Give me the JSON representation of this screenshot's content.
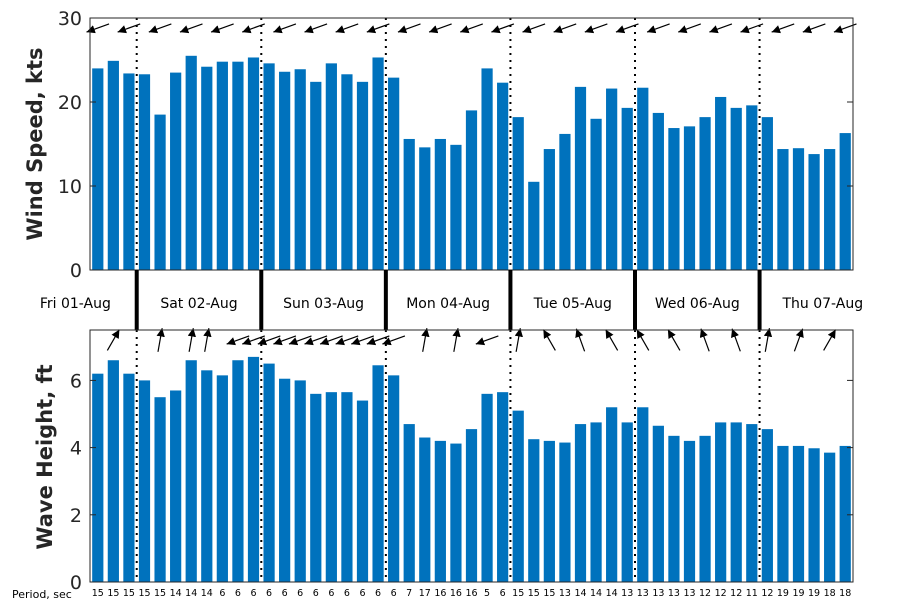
{
  "chart_data": [
    {
      "type": "bar",
      "ylabel": "Wind Speed, kts",
      "ylim": [
        0,
        30
      ],
      "yticks": [
        0,
        10,
        20,
        30
      ],
      "color": "#0072BD",
      "values": [
        24.0,
        24.9,
        23.4,
        23.3,
        18.5,
        23.5,
        25.5,
        24.2,
        24.8,
        24.8,
        25.3,
        24.6,
        23.6,
        23.9,
        22.4,
        24.6,
        23.3,
        22.4,
        25.3,
        22.9,
        15.6,
        14.6,
        15.6,
        14.9,
        19.0,
        24.0,
        22.3,
        18.2,
        10.5,
        14.4,
        16.2,
        21.8,
        18.0,
        21.6,
        19.3,
        21.7,
        18.7,
        16.9,
        17.1,
        18.2,
        20.6,
        19.3,
        19.6,
        18.2,
        14.4,
        14.5,
        13.8,
        14.4,
        16.3
      ],
      "direction_arrows": [
        "wind-arrow-left-down"
      ]
    },
    {
      "type": "bar",
      "ylabel": "Wave Height, ft",
      "ylim": [
        0,
        7.5
      ],
      "yticks": [
        0,
        2,
        4,
        6
      ],
      "color": "#0072BD",
      "values": [
        6.2,
        6.6,
        6.2,
        6.0,
        5.5,
        5.7,
        6.6,
        6.3,
        6.15,
        6.6,
        6.7,
        6.5,
        6.05,
        6.0,
        5.6,
        5.65,
        5.65,
        5.4,
        6.45,
        6.15,
        4.7,
        4.3,
        4.2,
        4.12,
        4.55,
        5.6,
        5.65,
        5.1,
        4.25,
        4.2,
        4.15,
        4.7,
        4.75,
        5.2,
        4.75,
        5.2,
        4.65,
        4.35,
        4.2,
        4.35,
        4.75,
        4.75,
        4.7,
        4.55,
        4.05,
        4.05,
        3.98,
        3.85,
        4.05
      ],
      "periods_label": "Period, sec",
      "periods": [
        15,
        15,
        15,
        15,
        15,
        14,
        14,
        14,
        6,
        6,
        6,
        6,
        6,
        6,
        6,
        6,
        6,
        6,
        6,
        6,
        7,
        17,
        16,
        16,
        16,
        5,
        6,
        15,
        15,
        15,
        13,
        14,
        14,
        14,
        13,
        13,
        13,
        13,
        13,
        12,
        12,
        12,
        11,
        12,
        19,
        19,
        19,
        18,
        18
      ],
      "direction_arrows": [
        "swell-arrow-left-down",
        "swell-arrow-up-right",
        "swell-arrow-up",
        "swell-arrow-up-left"
      ]
    }
  ],
  "days": [
    "Fri 01-Aug",
    "Sat 02-Aug",
    "Sun 03-Aug",
    "Mon 04-Aug",
    "Tue 05-Aug",
    "Wed 06-Aug",
    "Thu 07-Aug"
  ],
  "day_boundaries": [
    3,
    10,
    17,
    24,
    31,
    38
  ],
  "dotted_boundaries": [
    3,
    11,
    19,
    27,
    35,
    43
  ],
  "wind_arrow_angles": [
    200,
    200,
    200,
    200,
    200,
    200,
    200,
    200,
    200,
    200,
    200,
    200,
    200,
    200,
    200,
    200,
    200,
    200,
    200,
    200,
    200,
    200,
    200,
    200,
    200,
    200,
    200,
    200,
    200,
    200,
    200,
    200,
    200,
    200,
    200,
    200,
    200,
    200,
    200,
    200,
    200,
    200,
    200,
    200,
    200,
    200,
    200,
    200,
    200
  ],
  "swell_arrow_angles": [
    null,
    60,
    null,
    null,
    80,
    null,
    80,
    80,
    null,
    200,
    200,
    200,
    200,
    200,
    200,
    200,
    200,
    200,
    200,
    200,
    null,
    80,
    null,
    80,
    null,
    200,
    null,
    80,
    null,
    120,
    null,
    110,
    null,
    120,
    null,
    120,
    null,
    120,
    null,
    110,
    null,
    110,
    null,
    80,
    null,
    70,
    null,
    60,
    null
  ]
}
